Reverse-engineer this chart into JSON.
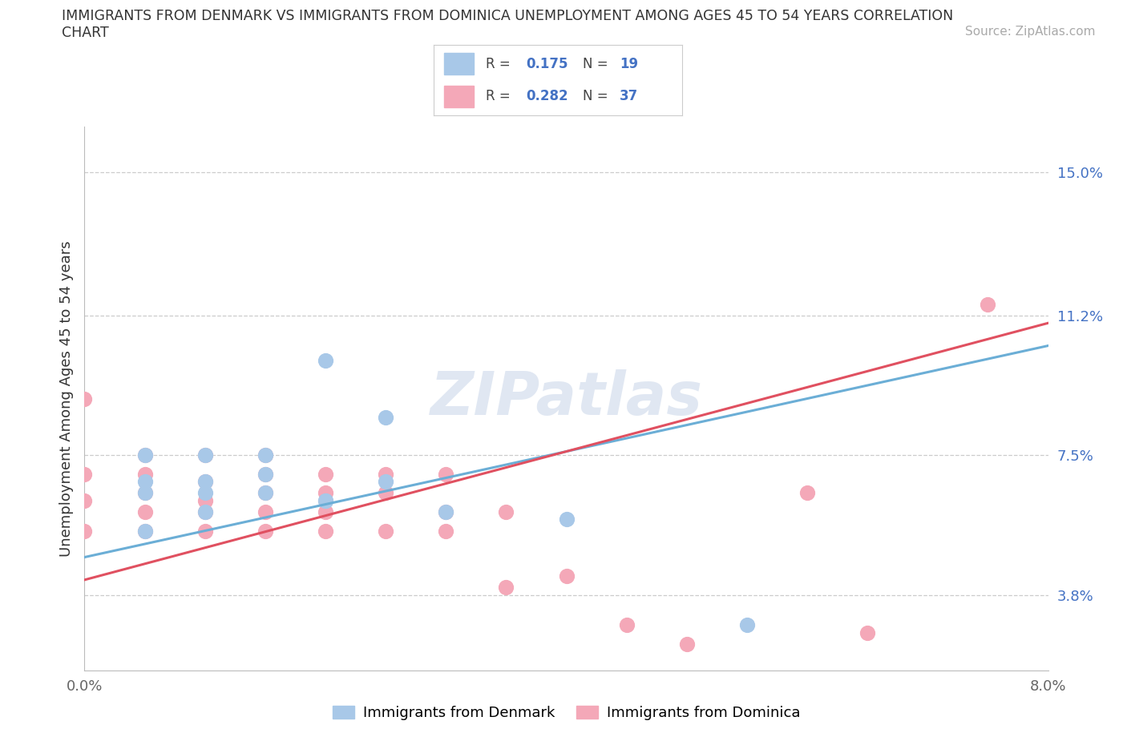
{
  "title_line1": "IMMIGRANTS FROM DENMARK VS IMMIGRANTS FROM DOMINICA UNEMPLOYMENT AMONG AGES 45 TO 54 YEARS CORRELATION",
  "title_line2": "CHART",
  "source": "Source: ZipAtlas.com",
  "ylabel": "Unemployment Among Ages 45 to 54 years",
  "xlim": [
    0.0,
    0.08
  ],
  "ylim": [
    0.018,
    0.162
  ],
  "xtick_values": [
    0.0,
    0.02,
    0.04,
    0.06,
    0.08
  ],
  "xticklabels": [
    "0.0%",
    "",
    "",
    "",
    "8.0%"
  ],
  "ytick_values": [
    0.038,
    0.075,
    0.112,
    0.15
  ],
  "ytick_labels": [
    "3.8%",
    "7.5%",
    "11.2%",
    "15.0%"
  ],
  "denmark_color": "#a8c8e8",
  "dominica_color": "#f4a8b8",
  "denmark_R": 0.175,
  "denmark_N": 19,
  "dominica_R": 0.282,
  "dominica_N": 37,
  "background_color": "#ffffff",
  "denmark_scatter_x": [
    0.005,
    0.01,
    0.015,
    0.005,
    0.01,
    0.015,
    0.02,
    0.005,
    0.01,
    0.015,
    0.02,
    0.005,
    0.01,
    0.02,
    0.025,
    0.025,
    0.03,
    0.04,
    0.055
  ],
  "denmark_scatter_y": [
    0.055,
    0.06,
    0.065,
    0.065,
    0.065,
    0.07,
    0.063,
    0.075,
    0.075,
    0.075,
    0.1,
    0.068,
    0.068,
    0.063,
    0.068,
    0.085,
    0.06,
    0.058,
    0.03
  ],
  "dominica_scatter_x": [
    0.0,
    0.0,
    0.0,
    0.0,
    0.005,
    0.005,
    0.005,
    0.005,
    0.005,
    0.01,
    0.01,
    0.01,
    0.01,
    0.01,
    0.015,
    0.015,
    0.015,
    0.015,
    0.015,
    0.02,
    0.02,
    0.02,
    0.02,
    0.025,
    0.025,
    0.025,
    0.03,
    0.03,
    0.03,
    0.035,
    0.035,
    0.04,
    0.045,
    0.05,
    0.06,
    0.065,
    0.075
  ],
  "dominica_scatter_y": [
    0.055,
    0.063,
    0.07,
    0.09,
    0.055,
    0.06,
    0.065,
    0.07,
    0.075,
    0.055,
    0.06,
    0.063,
    0.068,
    0.075,
    0.055,
    0.06,
    0.065,
    0.07,
    0.075,
    0.055,
    0.06,
    0.065,
    0.07,
    0.055,
    0.065,
    0.07,
    0.055,
    0.06,
    0.07,
    0.04,
    0.06,
    0.043,
    0.03,
    0.025,
    0.065,
    0.028,
    0.115
  ],
  "line_color_denmark": "#6baed6",
  "line_color_dominica": "#e05060",
  "legend_text_color": "#4472c4",
  "tick_label_color_y": "#4472c4",
  "tick_label_color_x": "#666666"
}
